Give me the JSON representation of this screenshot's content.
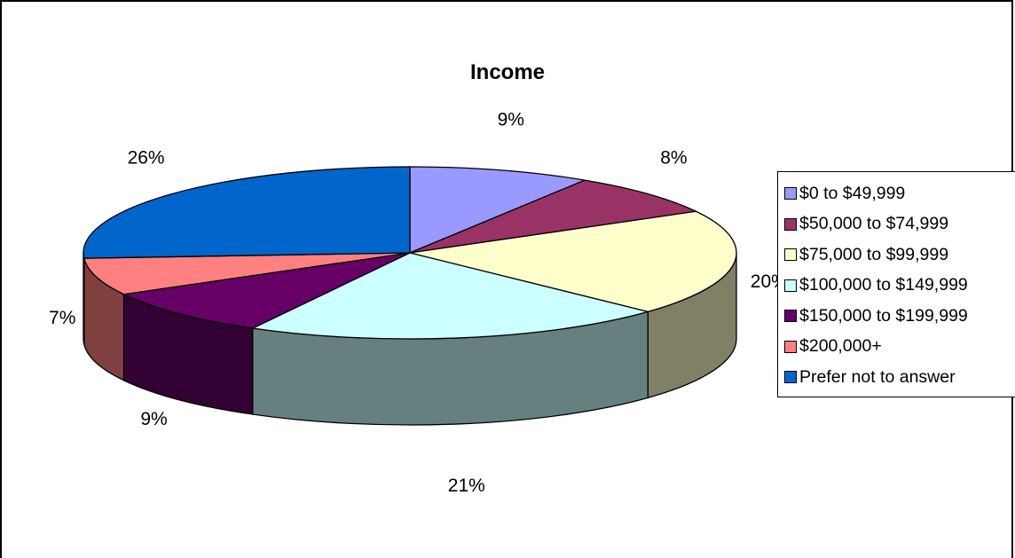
{
  "chart_data": {
    "type": "pie",
    "title": "Income",
    "categories": [
      "$0 to $49,999",
      "$50,000 to $74,999",
      "$75,000 to $99,999",
      "$100,000 to $149,999",
      "$150,000 to $199,999",
      "$200,000+",
      "Prefer not to answer"
    ],
    "values": [
      9,
      8,
      20,
      21,
      9,
      7,
      26
    ],
    "labels": [
      "9%",
      "8%",
      "20%",
      "21%",
      "9%",
      "7%",
      "26%"
    ],
    "colors": [
      "#9999ff",
      "#993366",
      "#ffffcc",
      "#ccffff",
      "#660066",
      "#ff8080",
      "#0066cc"
    ],
    "side_colors": [
      "#7373bf",
      "#73264d",
      "#808066",
      "#668080",
      "#330033",
      "#804040",
      "#003366"
    ],
    "legend_position": "right",
    "view": "3d-tilted"
  }
}
